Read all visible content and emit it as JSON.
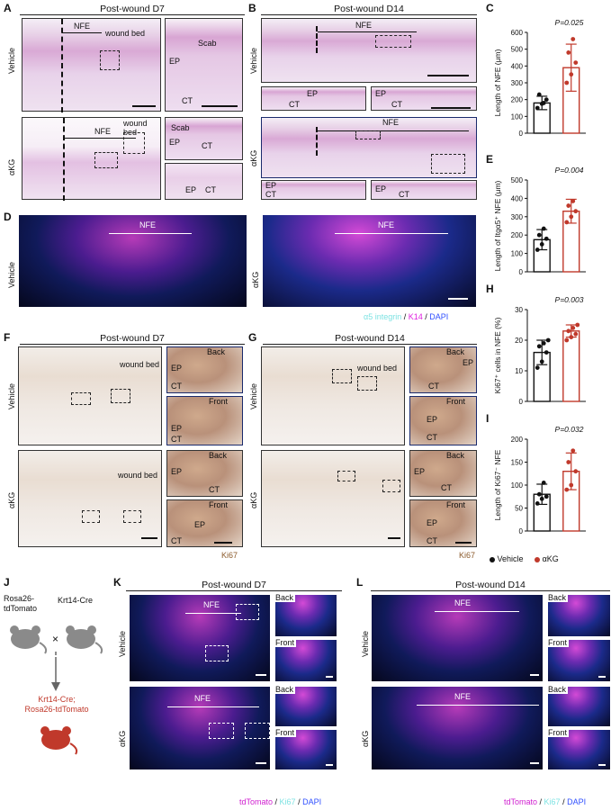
{
  "panels": {
    "A": {
      "letter": "A",
      "title": "Post-wound D7",
      "row1": "Vehicle",
      "row2": "αKG",
      "nfe": "NFE",
      "wound_bed": "wound bed",
      "scab": "Scab",
      "ep": "EP",
      "ct": "CT"
    },
    "B": {
      "letter": "B",
      "title": "Post-wound D14",
      "row1": "Vehicle",
      "row2": "αKG",
      "nfe": "NFE",
      "ep": "EP",
      "ct": "CT"
    },
    "D": {
      "letter": "D",
      "row1": "Vehicle",
      "row2": "αKG",
      "nfe": "NFE",
      "legend_a": "α5 integrin",
      "legend_sep1": " / ",
      "legend_b": "K14",
      "legend_sep2": " / ",
      "legend_c": "DAPI"
    },
    "F": {
      "letter": "F",
      "title": "Post-wound D7",
      "row1": "Vehicle",
      "row2": "αKG",
      "wound_bed": "wound bed",
      "back": "Back",
      "front": "Front",
      "ep": "EP",
      "ct": "CT",
      "stain": "Ki67"
    },
    "G": {
      "letter": "G",
      "title": "Post-wound D14",
      "row1": "Vehicle",
      "row2": "αKG",
      "wound_bed": "wound bed",
      "back": "Back",
      "front": "Front",
      "ep": "EP",
      "ct": "CT",
      "stain": "Ki67"
    },
    "J": {
      "letter": "J",
      "mouse1": "Rosa26-\ntdTomato",
      "times": "×",
      "mouse2": "Krt14-Cre",
      "result": "Krt14-Cre;\nRosa26-tdTomato"
    },
    "K": {
      "letter": "K",
      "title": "Post-wound D7",
      "row1": "Vehicle",
      "row2": "αKG",
      "nfe": "NFE",
      "back": "Back",
      "front": "Front",
      "legend_a": "tdTomato",
      "legend_sep1": " / ",
      "legend_b": "Ki67",
      "legend_sep2": " / ",
      "legend_c": "DAPI"
    },
    "L": {
      "letter": "L",
      "title": "Post-wound D14",
      "row1": "Vehicle",
      "row2": "αKG",
      "nfe": "NFE",
      "back": "Back",
      "front": "Front",
      "legend_a": "tdTomato",
      "legend_sep1": " / ",
      "legend_b": "Ki67",
      "legend_sep2": " / ",
      "legend_c": "DAPI"
    }
  },
  "legend": {
    "vehicle": "Vehicle",
    "akg": "αKG"
  },
  "colors": {
    "vehicle": "#111111",
    "akg": "#c0392b",
    "magenta": "#e020e0",
    "cyan": "#7fe3e3",
    "blue": "#3050ff",
    "tdtomato": "#d020d0",
    "ki67_brown": "#8b5a2b"
  },
  "chart_data": [
    {
      "panel": "C",
      "type": "bar",
      "categories": [
        "Vehicle",
        "αKG"
      ],
      "values": [
        180,
        390
      ],
      "errors": [
        40,
        140
      ],
      "points": [
        [
          150,
          175,
          200,
          230,
          180
        ],
        [
          300,
          350,
          420,
          480,
          560
        ]
      ],
      "ylabel": "Length of NFE (μm)",
      "ylim": [
        0,
        600
      ],
      "yticks": [
        0,
        100,
        200,
        300,
        400,
        500,
        600
      ],
      "pvalue": "P=0.025"
    },
    {
      "panel": "E",
      "type": "bar",
      "categories": [
        "Vehicle",
        "αKG"
      ],
      "values": [
        175,
        330
      ],
      "errors": [
        55,
        65
      ],
      "points": [
        [
          120,
          150,
          180,
          200,
          235
        ],
        [
          270,
          300,
          330,
          360,
          385
        ]
      ],
      "ylabel": "Length of Itgα5⁺ NFE (μm)",
      "ylim": [
        0,
        500
      ],
      "yticks": [
        0,
        100,
        200,
        300,
        400,
        500
      ],
      "pvalue": "P=0.004"
    },
    {
      "panel": "H",
      "type": "bar",
      "categories": [
        "Vehicle",
        "αKG"
      ],
      "values": [
        16,
        23
      ],
      "errors": [
        4,
        2
      ],
      "points": [
        [
          11,
          13,
          16,
          18,
          19,
          20
        ],
        [
          20,
          21,
          22,
          23,
          24,
          25
        ]
      ],
      "ylabel": "Ki67⁺ cells in NFE (%)",
      "ylim": [
        0,
        30
      ],
      "yticks": [
        0,
        10,
        20,
        30
      ],
      "pvalue": "P=0.003"
    },
    {
      "panel": "I",
      "type": "bar",
      "categories": [
        "Vehicle",
        "αKG"
      ],
      "values": [
        80,
        130
      ],
      "errors": [
        22,
        40
      ],
      "points": [
        [
          60,
          70,
          75,
          80,
          105
        ],
        [
          90,
          100,
          130,
          150,
          175
        ]
      ],
      "ylabel": "Length of Ki67⁻ NFE",
      "ylim": [
        0,
        200
      ],
      "yticks": [
        0,
        50,
        100,
        150,
        200
      ],
      "pvalue": "P=0.032"
    }
  ],
  "chart_letters": {
    "C": "C",
    "E": "E",
    "H": "H",
    "I": "I"
  }
}
